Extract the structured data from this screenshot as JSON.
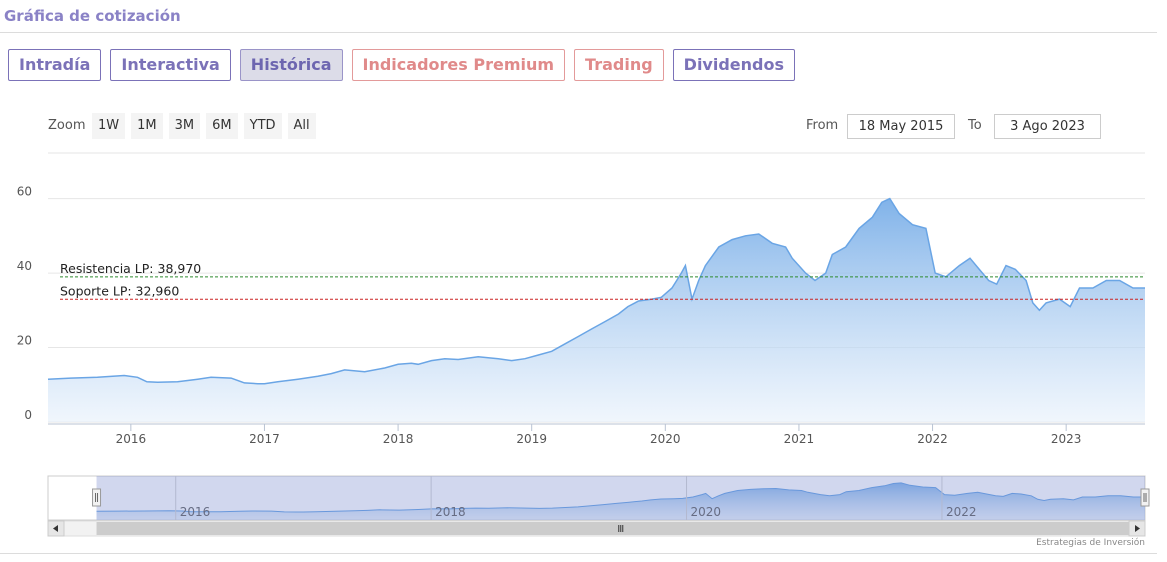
{
  "widget": {
    "title": "Gráfica de cotización"
  },
  "tabs": [
    {
      "label": "Intradía",
      "style": "normal"
    },
    {
      "label": "Interactiva",
      "style": "normal"
    },
    {
      "label": "Histórica",
      "style": "active"
    },
    {
      "label": "Indicadores Premium",
      "style": "premium"
    },
    {
      "label": "Trading",
      "style": "premium"
    },
    {
      "label": "Dividendos",
      "style": "normal"
    }
  ],
  "range_selector": {
    "zoom_label": "Zoom",
    "buttons": [
      "1W",
      "1M",
      "3M",
      "6M",
      "YTD",
      "All"
    ],
    "from_label": "From",
    "from_value": "18 May 2015",
    "to_label": "To",
    "to_value": "3 Ago 2023"
  },
  "credit": "Estrategias de Inversión",
  "colors": {
    "accent": "#7b72b8",
    "premium": "#e08a8a",
    "series_line": "#6aa5e5",
    "resistance": "#2e8b2e",
    "support": "#cc2222"
  },
  "chart_data": {
    "type": "area",
    "xlim": [
      2015.38,
      2023.59
    ],
    "ylim": [
      0,
      65
    ],
    "yticks": [
      0,
      20,
      40,
      60
    ],
    "xticks": [
      "2016",
      "2017",
      "2018",
      "2019",
      "2020",
      "2021",
      "2022",
      "2023"
    ],
    "grid": true,
    "legend": "none",
    "series": [
      {
        "x": [
          2015.38,
          2015.55,
          2015.75,
          2015.95,
          2016.05,
          2016.12,
          2016.2,
          2016.35,
          2016.5,
          2016.6,
          2016.75,
          2016.85,
          2016.95,
          2017.0,
          2017.1,
          2017.25,
          2017.4,
          2017.5,
          2017.6,
          2017.75,
          2017.9,
          2018.0,
          2018.1,
          2018.15,
          2018.25,
          2018.35,
          2018.45,
          2018.6,
          2018.75,
          2018.85,
          2018.95,
          2019.05,
          2019.15,
          2019.25,
          2019.35,
          2019.45,
          2019.55,
          2019.65,
          2019.72,
          2019.8,
          2019.9,
          2019.97,
          2020.05,
          2020.12,
          2020.15,
          2020.2,
          2020.25,
          2020.3,
          2020.4,
          2020.5,
          2020.6,
          2020.7,
          2020.8,
          2020.9,
          2020.95,
          2021.05,
          2021.12,
          2021.2,
          2021.25,
          2021.35,
          2021.45,
          2021.55,
          2021.62,
          2021.68,
          2021.75,
          2021.85,
          2021.95,
          2022.02,
          2022.1,
          2022.2,
          2022.28,
          2022.35,
          2022.42,
          2022.48,
          2022.55,
          2022.62,
          2022.7,
          2022.75,
          2022.8,
          2022.85,
          2022.95,
          2023.03,
          2023.1,
          2023.2,
          2023.3,
          2023.4,
          2023.5,
          2023.59
        ],
        "y": [
          11.5,
          11.8,
          12.0,
          12.5,
          12.0,
          10.8,
          10.7,
          10.8,
          11.5,
          12.0,
          11.8,
          10.5,
          10.3,
          10.3,
          10.8,
          11.5,
          12.3,
          13.0,
          14.0,
          13.5,
          14.5,
          15.5,
          15.8,
          15.5,
          16.5,
          17.0,
          16.8,
          17.5,
          17.0,
          16.5,
          17.0,
          18.0,
          19.0,
          21.0,
          23.0,
          25.0,
          27.0,
          29.0,
          31.0,
          32.5,
          33.0,
          33.5,
          36.0,
          40.0,
          42.0,
          33.0,
          38.0,
          42.0,
          47.0,
          49.0,
          50.0,
          50.5,
          48.0,
          47.0,
          44.0,
          40.0,
          38.0,
          40.0,
          45.0,
          47.0,
          52.0,
          55.0,
          59.0,
          60.0,
          56.0,
          53.0,
          52.0,
          40.0,
          39.0,
          42.0,
          44.0,
          41.0,
          38.0,
          37.0,
          42.0,
          41.0,
          38.0,
          32.0,
          30.0,
          32.0,
          33.0,
          31.0,
          36.0,
          36.0,
          38.0,
          38.0,
          36.0,
          36.0
        ]
      }
    ],
    "annotations": [
      {
        "label": "Resistencia LP: 38,970",
        "y": 38.97,
        "color": "#2e8b2e"
      },
      {
        "label": "Soporte LP: 32,960",
        "y": 32.96,
        "color": "#cc2222"
      }
    ],
    "navigator": {
      "xticks": [
        "2016",
        "2018",
        "2020",
        "2022"
      ],
      "xlim": [
        2015.0,
        2023.59
      ]
    }
  }
}
